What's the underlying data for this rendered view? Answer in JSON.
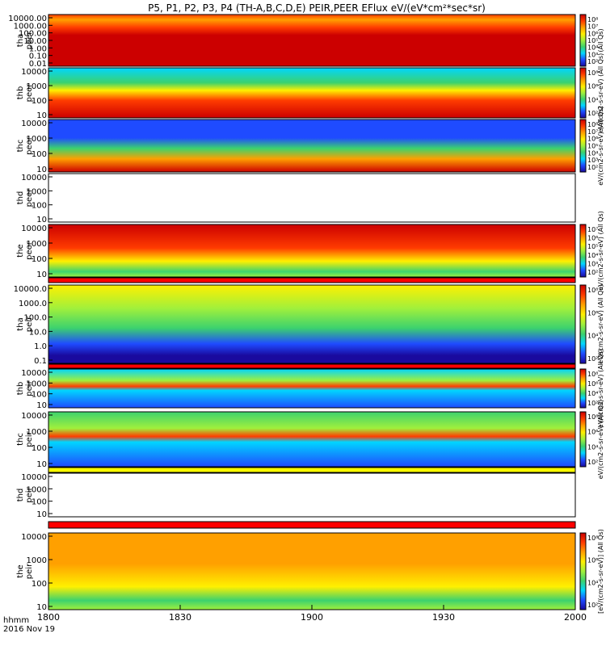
{
  "title": "P5, P1, P2, P3, P4 (TH-A,B,C,D,E) PEIR,PEER EFlux eV/(eV*cm²*sec*sr)",
  "xaxis": {
    "ticks": [
      "1800",
      "1830",
      "1900",
      "1930",
      "2000"
    ],
    "tick_minutes": [
      0,
      30,
      60,
      90,
      120
    ],
    "label_line1": "hhmm",
    "label_line2": "2016 Nov 19"
  },
  "colors": {
    "spectrogram_scale": [
      "#1a0a9e",
      "#1f4bff",
      "#00d6ff",
      "#3cd26e",
      "#a0f03c",
      "#fff000",
      "#ffa000",
      "#ff3c00",
      "#cc0000"
    ],
    "band_red": "#ff0000",
    "band_yellow": "#ffff00"
  },
  "chart_data": {
    "type": "heatmap",
    "x_range_minutes": [
      0,
      120
    ],
    "panels": [
      {
        "id": "tha-peer",
        "probe": "tha",
        "species": "peer",
        "label": "tha peer",
        "ytick_labels": [
          "10000.00",
          "1000.00",
          "100.00",
          "10.00",
          "1.00",
          "0.10",
          "0.01"
        ],
        "cbar_ticks": [
          "10⁸",
          "10⁷",
          "10⁶",
          "10⁵",
          "10⁴",
          "10³",
          "10²"
        ],
        "cbar_label": "(All Qs)"
      },
      {
        "id": "thb-peer",
        "probe": "thb",
        "species": "peer",
        "label": "thb peer",
        "ytick_labels": [
          "10000",
          "1000",
          "100",
          "10"
        ],
        "cbar_ticks": [
          "10⁸",
          "10⁶",
          "10⁴",
          "10²"
        ],
        "cbar_label": "eV/(cm2-s-sr-eV) (All Qs)"
      },
      {
        "id": "thc-peer",
        "probe": "thc",
        "species": "peer",
        "label": "thc peer",
        "ytick_labels": [
          "10000",
          "1000",
          "100",
          "10"
        ],
        "cbar_ticks": [
          "10⁸",
          "10⁷",
          "10⁶",
          "10⁵",
          "10⁴",
          "10³",
          "10²"
        ],
        "cbar_label": "eV/(cm2-s-sr-eV) (All Qs)"
      },
      {
        "id": "thd-peer",
        "probe": "thd",
        "species": "peer",
        "label": "thd peer",
        "ytick_labels": [
          "10000",
          "1000",
          "100",
          "10"
        ],
        "cbar_ticks": [],
        "cbar_label": ""
      },
      {
        "id": "the-peer",
        "probe": "the",
        "species": "peer",
        "label": "the peer",
        "ytick_labels": [
          "10000",
          "1000",
          "100",
          "10"
        ],
        "cbar_ticks": [
          "10⁷",
          "10⁶",
          "10⁵",
          "10⁴",
          "10³",
          "10²"
        ],
        "cbar_label": "eV/(cm2-s-sr-eV) (All Qs)"
      },
      {
        "id": "tha-peir",
        "probe": "tha",
        "species": "peir",
        "label": "tha peir",
        "ytick_labels": [
          "10000.0",
          "1000.0",
          "100.0",
          "10.0",
          "1.0",
          "0.1"
        ],
        "cbar_ticks": [
          "10⁸",
          "10⁶",
          "10⁴",
          "10²"
        ],
        "cbar_label": "eV/(cm2-s-sr-eV) (All Qs)"
      },
      {
        "id": "thb-peir",
        "probe": "thb",
        "species": "peir",
        "label": "thb peir",
        "ytick_labels": [
          "10000",
          "1000",
          "100",
          "10"
        ],
        "cbar_ticks": [
          "10⁸",
          "10⁶",
          "10⁴",
          "10²"
        ],
        "cbar_label": "eV/(cm2-s-sr-eV) (All Qs)"
      },
      {
        "id": "thc-peir",
        "probe": "thc",
        "species": "peir",
        "label": "thc peir",
        "ytick_labels": [
          "10000",
          "1000",
          "100",
          "10"
        ],
        "cbar_ticks": [
          "10⁸",
          "10⁶",
          "10⁴",
          "10²"
        ],
        "cbar_label": "eV/(cm2-s-sr-eV) (All Qs)"
      },
      {
        "id": "thd-peir",
        "probe": "thd",
        "species": "peir",
        "label": "thd peir",
        "ytick_labels": [
          "10000",
          "1000",
          "100",
          "10"
        ],
        "cbar_ticks": [],
        "cbar_label": ""
      },
      {
        "id": "the-peir",
        "probe": "the",
        "species": "peir",
        "label": "the peir",
        "ytick_labels": [
          "10000",
          "1000",
          "100",
          "10"
        ],
        "cbar_ticks": [
          "10⁸",
          "10⁶",
          "10⁴",
          "10²"
        ],
        "cbar_label": "[eV/(cm2-s-sr-eV)] (All Qs)"
      }
    ]
  }
}
